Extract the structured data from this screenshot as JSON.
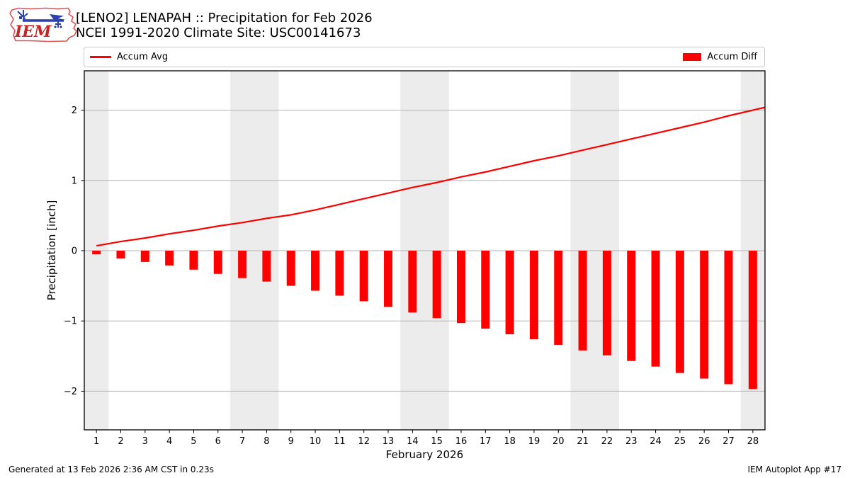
{
  "header": {
    "title_line1": "[LENO2] LENAPAH :: Precipitation for Feb 2026",
    "title_line2": "NCEI 1991-2020 Climate Site: USC00141673"
  },
  "logo": {
    "text": "IEM"
  },
  "legend": {
    "items": [
      {
        "label": "Accum Avg",
        "type": "line"
      },
      {
        "label": "Accum Diff",
        "type": "bar"
      }
    ]
  },
  "footer": {
    "left": "Generated at 13 Feb 2026 2:36 AM CST in 0.23s",
    "right": "IEM Autoplot App #17"
  },
  "colors": {
    "accent": "#ff0000",
    "grid": "#b3b3b3",
    "band": "#ececec",
    "border": "#000000",
    "logo_outline": "#e05252",
    "logo_text": "#cc2222",
    "logo_vane": "#2a3fb0"
  },
  "chart_data": {
    "type": "bar",
    "title": "[LENO2] LENAPAH :: Precipitation for Feb 2026",
    "subtitle": "NCEI 1991-2020 Climate Site: USC00141673",
    "xlabel": "February 2026",
    "ylabel": "Precipitation [inch]",
    "x": [
      1,
      2,
      3,
      4,
      5,
      6,
      7,
      8,
      9,
      10,
      11,
      12,
      13,
      14,
      15,
      16,
      17,
      18,
      19,
      20,
      21,
      22,
      23,
      24,
      25,
      26,
      27,
      28
    ],
    "series": [
      {
        "name": "Accum Avg",
        "type": "line",
        "color": "#ff0000",
        "values": [
          0.07,
          0.13,
          0.18,
          0.24,
          0.29,
          0.35,
          0.4,
          0.46,
          0.51,
          0.58,
          0.66,
          0.74,
          0.82,
          0.9,
          0.97,
          1.05,
          1.12,
          1.2,
          1.28,
          1.35,
          1.43,
          1.51,
          1.59,
          1.67,
          1.75,
          1.83,
          1.92,
          2.0
        ]
      },
      {
        "name": "Accum Diff",
        "type": "bar",
        "color": "#ff0000",
        "values": [
          -0.05,
          -0.11,
          -0.16,
          -0.21,
          -0.27,
          -0.33,
          -0.39,
          -0.44,
          -0.5,
          -0.57,
          -0.64,
          -0.72,
          -0.8,
          -0.88,
          -0.96,
          -1.03,
          -1.11,
          -1.19,
          -1.26,
          -1.34,
          -1.42,
          -1.49,
          -1.57,
          -1.65,
          -1.74,
          -1.82,
          -1.9,
          -1.97
        ]
      }
    ],
    "yticks": [
      -2,
      -1,
      0,
      1,
      2
    ],
    "ylim": [
      -2.55,
      2.56
    ],
    "xlim": [
      0.5,
      28.5
    ],
    "grid": "horizontal",
    "legend_position": "top",
    "weekend_bands": [
      [
        0.5,
        1.5
      ],
      [
        6.5,
        8.5
      ],
      [
        13.5,
        15.5
      ],
      [
        20.5,
        22.5
      ],
      [
        27.5,
        28.5
      ]
    ]
  }
}
